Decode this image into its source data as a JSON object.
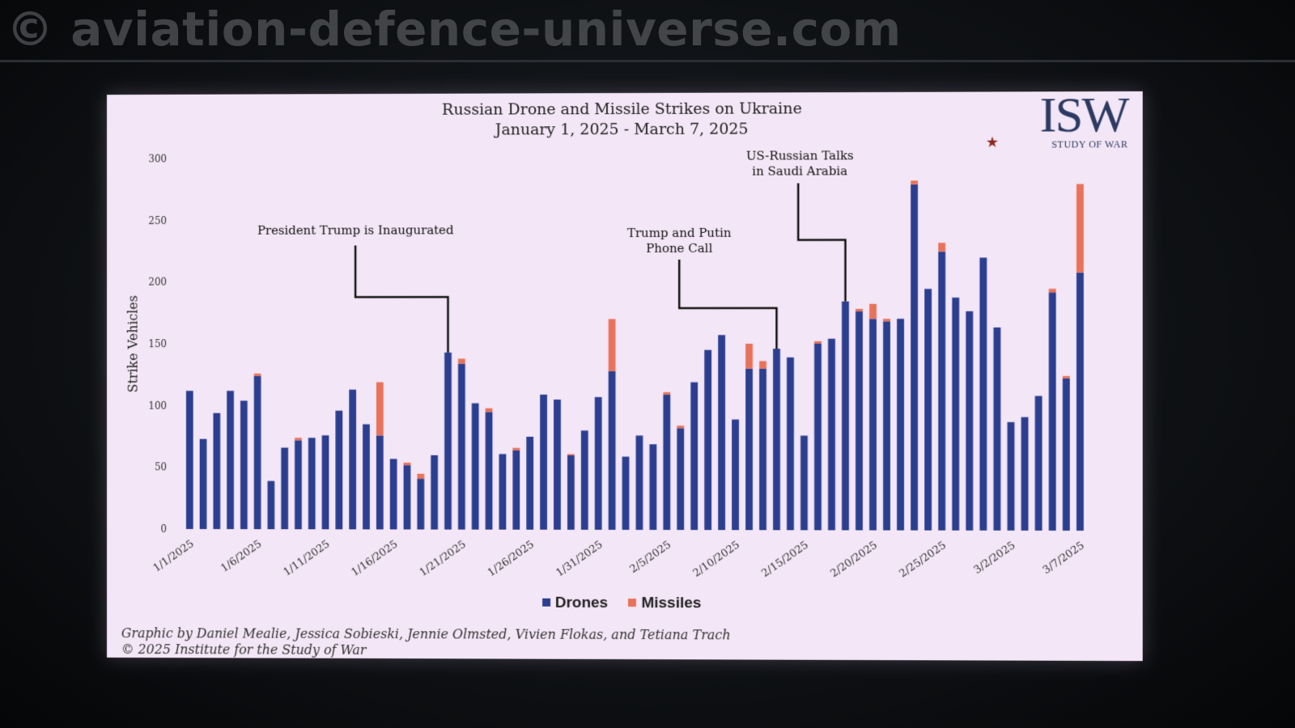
{
  "watermark": "© aviation-defence-universe.com",
  "logo": {
    "mark": "ISW",
    "subtitle": "STUDY OF WAR",
    "star": "★"
  },
  "legend": [
    {
      "label": "Drones",
      "color": "#2b3e8f"
    },
    {
      "label": "Missiles",
      "color": "#e8735a"
    }
  ],
  "credits": {
    "line1": "Graphic by Daniel Mealie, Jessica Sobieski, Jennie Olmsted, Vivien Flokas, and Tetiana Trach",
    "line2": "© 2025 Institute for the Study of War"
  },
  "chart_data": {
    "type": "bar",
    "stacked": true,
    "title": "Russian Drone and Missile Strikes on Ukraine",
    "subtitle": "January 1, 2025 - March 7, 2025",
    "ylabel": "Strike Vehicles",
    "ylim": [
      0,
      300
    ],
    "yticks": [
      0,
      50,
      100,
      150,
      200,
      250,
      300
    ],
    "xtick_labels": [
      "1/1/2025",
      "1/6/2025",
      "1/11/2025",
      "1/16/2025",
      "1/21/2025",
      "1/26/2025",
      "1/31/2025",
      "2/5/2025",
      "2/10/2025",
      "2/15/2025",
      "2/20/2025",
      "2/25/2025",
      "3/2/2025",
      "3/7/2025"
    ],
    "xtick_every": 5,
    "series": [
      {
        "name": "Drones",
        "color": "#2b3e8f",
        "values": [
          112,
          73,
          94,
          112,
          104,
          124,
          39,
          66,
          72,
          74,
          76,
          96,
          113,
          85,
          76,
          57,
          52,
          41,
          60,
          143,
          134,
          102,
          95,
          61,
          64,
          75,
          109,
          105,
          60,
          80,
          107,
          128,
          59,
          76,
          69,
          109,
          82,
          119,
          145,
          157,
          89,
          130,
          130,
          146,
          139,
          76,
          150,
          154,
          184,
          176,
          170,
          168,
          170,
          278,
          194,
          224,
          187,
          176,
          219,
          163,
          87,
          91,
          108,
          191,
          122,
          207
        ]
      },
      {
        "name": "Missiles",
        "color": "#e8735a",
        "values": [
          0,
          0,
          0,
          0,
          0,
          2,
          0,
          0,
          2,
          0,
          0,
          0,
          0,
          0,
          43,
          0,
          2,
          4,
          0,
          0,
          4,
          0,
          3,
          0,
          2,
          0,
          0,
          0,
          1,
          0,
          0,
          42,
          0,
          0,
          0,
          2,
          2,
          0,
          0,
          0,
          0,
          20,
          6,
          0,
          0,
          0,
          2,
          0,
          0,
          2,
          12,
          2,
          0,
          3,
          0,
          7,
          0,
          0,
          0,
          0,
          0,
          0,
          0,
          3,
          2,
          71
        ]
      }
    ],
    "annotations": [
      {
        "text": [
          "President Trump is Inaugurated"
        ],
        "bar_index": 19
      },
      {
        "text": [
          "Trump and Putin",
          "Phone Call"
        ],
        "bar_index": 43
      },
      {
        "text": [
          "US-Russian Talks",
          "in Saudi Arabia"
        ],
        "bar_index": 48
      }
    ]
  }
}
